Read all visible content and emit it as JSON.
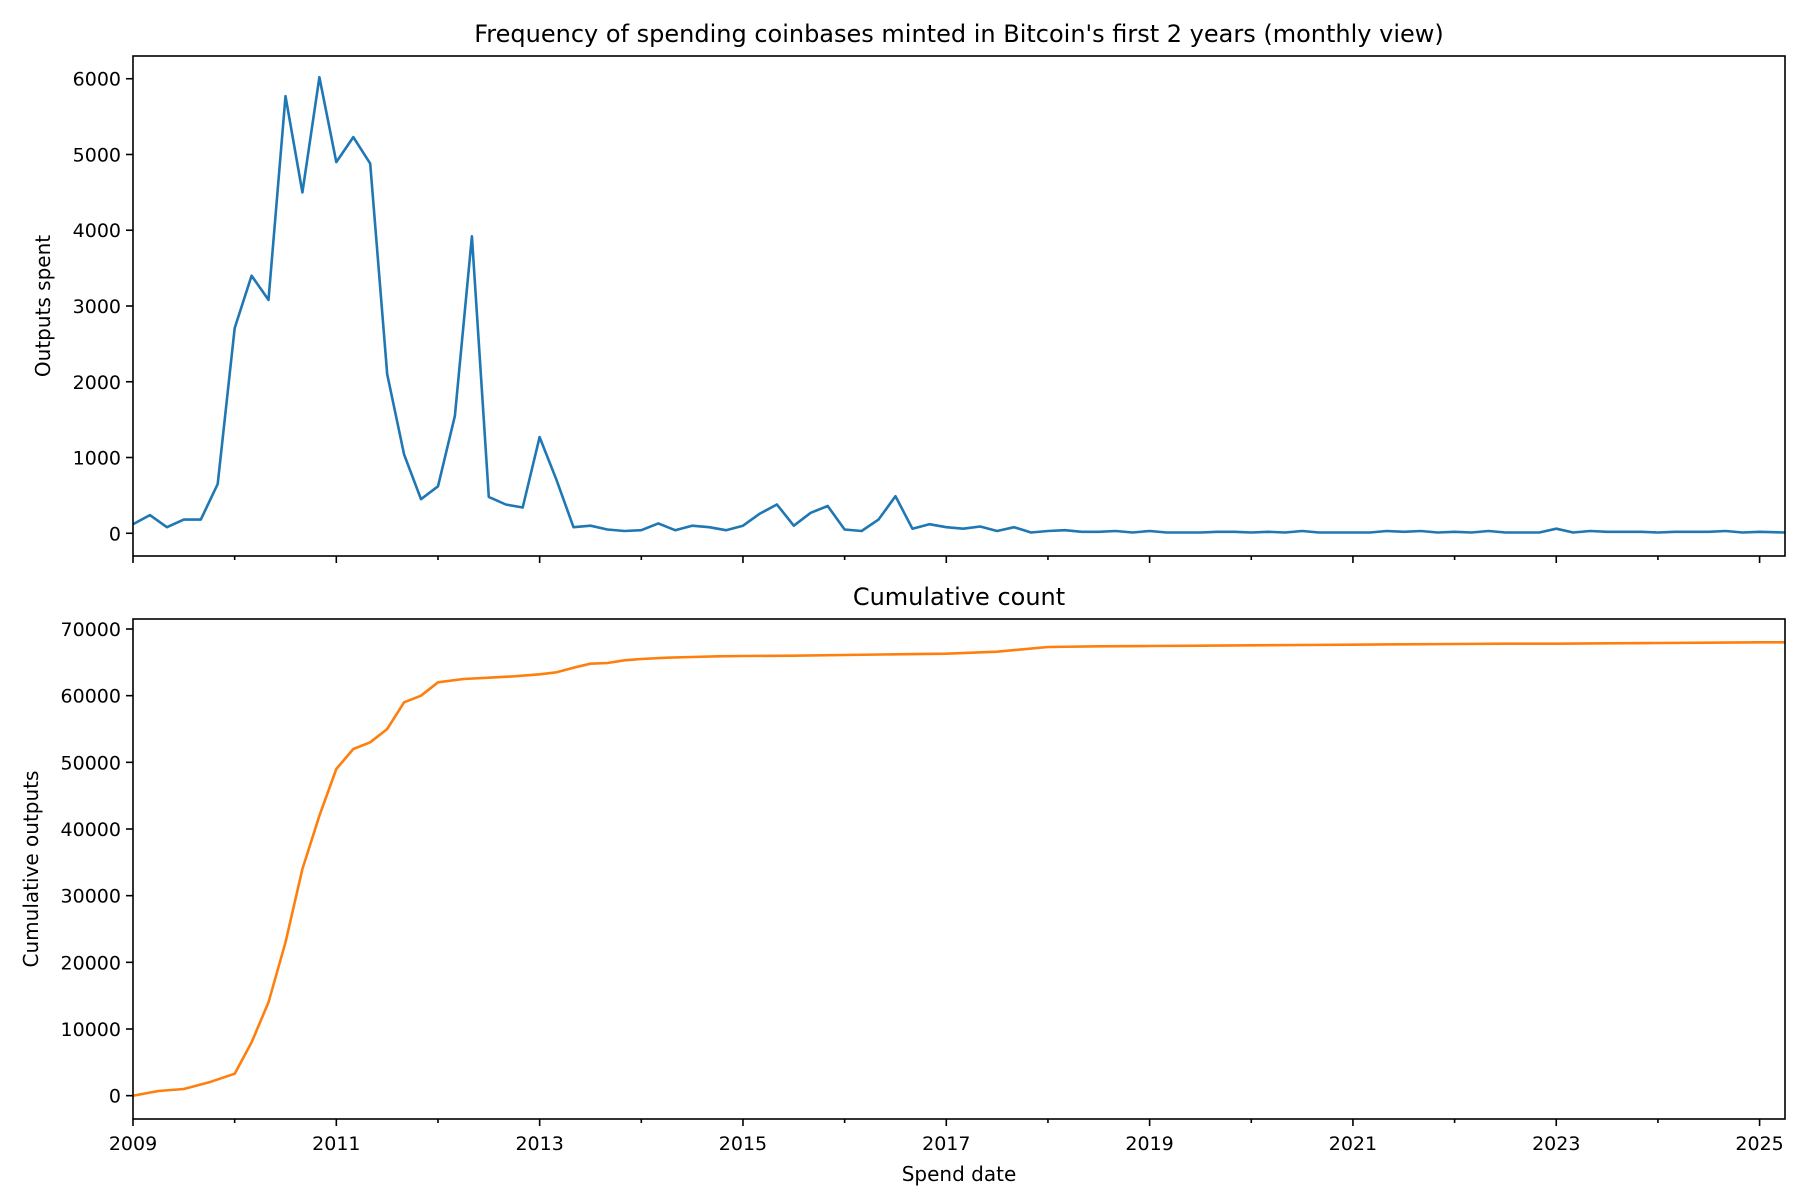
{
  "chart_data": [
    {
      "type": "line",
      "title": "Frequency of spending coinbases minted in Bitcoin's first 2 years (monthly view)",
      "xlabel": "",
      "ylabel": "Outputs spent",
      "xlim": [
        "2009-01",
        "2025-04"
      ],
      "ylim": [
        -300,
        6300
      ],
      "yticks": [
        0,
        1000,
        2000,
        3000,
        4000,
        5000,
        6000
      ],
      "ytick_labels": [
        "0",
        "1000",
        "2000",
        "3000",
        "4000",
        "5000",
        "6000"
      ],
      "xticks_major": [
        "2009-01",
        "2011-01",
        "2013-01",
        "2015-01",
        "2017-01",
        "2019-01",
        "2021-01",
        "2023-01",
        "2025-01"
      ],
      "xticks_minor": [
        "2010-01",
        "2012-01",
        "2014-01",
        "2016-01",
        "2018-01",
        "2020-01",
        "2022-01",
        "2024-01"
      ],
      "xtick_labels_shown": false,
      "grid": false,
      "color": "#1f77b4",
      "x": [
        "2009-01",
        "2009-03",
        "2009-05",
        "2009-07",
        "2009-09",
        "2009-11",
        "2010-01",
        "2010-03",
        "2010-05",
        "2010-07",
        "2010-09",
        "2010-11",
        "2011-01",
        "2011-03",
        "2011-05",
        "2011-07",
        "2011-09",
        "2011-11",
        "2012-01",
        "2012-03",
        "2012-05",
        "2012-07",
        "2012-09",
        "2012-11",
        "2013-01",
        "2013-03",
        "2013-05",
        "2013-07",
        "2013-09",
        "2013-11",
        "2014-01",
        "2014-03",
        "2014-05",
        "2014-07",
        "2014-09",
        "2014-11",
        "2015-01",
        "2015-03",
        "2015-05",
        "2015-07",
        "2015-09",
        "2015-11",
        "2016-01",
        "2016-03",
        "2016-05",
        "2016-07",
        "2016-09",
        "2016-11",
        "2017-01",
        "2017-03",
        "2017-05",
        "2017-07",
        "2017-09",
        "2017-11",
        "2018-01",
        "2018-03",
        "2018-05",
        "2018-07",
        "2018-09",
        "2018-11",
        "2019-01",
        "2019-03",
        "2019-05",
        "2019-07",
        "2019-09",
        "2019-11",
        "2020-01",
        "2020-03",
        "2020-05",
        "2020-07",
        "2020-09",
        "2020-11",
        "2021-01",
        "2021-03",
        "2021-05",
        "2021-07",
        "2021-09",
        "2021-11",
        "2022-01",
        "2022-03",
        "2022-05",
        "2022-07",
        "2022-09",
        "2022-11",
        "2023-01",
        "2023-03",
        "2023-05",
        "2023-07",
        "2023-09",
        "2023-11",
        "2024-01",
        "2024-03",
        "2024-05",
        "2024-07",
        "2024-09",
        "2024-11",
        "2025-01",
        "2025-04"
      ],
      "y": [
        120,
        240,
        80,
        180,
        180,
        650,
        2710,
        3400,
        3080,
        5770,
        4500,
        6020,
        4900,
        5230,
        4880,
        2100,
        1040,
        450,
        620,
        1550,
        3920,
        480,
        380,
        340,
        1270,
        700,
        80,
        100,
        50,
        30,
        40,
        130,
        40,
        100,
        80,
        40,
        100,
        260,
        380,
        100,
        270,
        360,
        50,
        30,
        180,
        490,
        60,
        120,
        80,
        60,
        90,
        30,
        80,
        10,
        30,
        40,
        20,
        20,
        30,
        10,
        30,
        10,
        10,
        10,
        20,
        20,
        10,
        20,
        10,
        30,
        10,
        10,
        10,
        10,
        30,
        20,
        30,
        10,
        20,
        10,
        30,
        10,
        10,
        10,
        60,
        10,
        30,
        20,
        20,
        20,
        10,
        20,
        20,
        20,
        30,
        10,
        20,
        10
      ]
    },
    {
      "type": "line",
      "title": "Cumulative count",
      "xlabel": "Spend date",
      "ylabel": "Cumulative outputs",
      "xlim": [
        "2009-01",
        "2025-04"
      ],
      "ylim": [
        -3500,
        71500
      ],
      "yticks": [
        0,
        10000,
        20000,
        30000,
        40000,
        50000,
        60000,
        70000
      ],
      "ytick_labels": [
        "0",
        "10000",
        "20000",
        "30000",
        "40000",
        "50000",
        "60000",
        "70000"
      ],
      "xticks_major": [
        "2009-01",
        "2011-01",
        "2013-01",
        "2015-01",
        "2017-01",
        "2019-01",
        "2021-01",
        "2023-01",
        "2025-01"
      ],
      "xtick_labels": [
        "2009",
        "2011",
        "2013",
        "2015",
        "2017",
        "2019",
        "2021",
        "2023",
        "2025"
      ],
      "xticks_minor": [
        "2010-01",
        "2012-01",
        "2014-01",
        "2016-01",
        "2018-01",
        "2020-01",
        "2022-01",
        "2024-01"
      ],
      "grid": false,
      "color": "#ff7f0e",
      "x": [
        "2009-01",
        "2009-04",
        "2009-07",
        "2009-10",
        "2010-01",
        "2010-03",
        "2010-05",
        "2010-07",
        "2010-09",
        "2010-11",
        "2011-01",
        "2011-03",
        "2011-05",
        "2011-07",
        "2011-09",
        "2011-11",
        "2012-01",
        "2012-04",
        "2012-07",
        "2012-10",
        "2013-01",
        "2013-03",
        "2013-05",
        "2013-07",
        "2013-09",
        "2013-11",
        "2014-01",
        "2014-04",
        "2014-07",
        "2014-10",
        "2015-01",
        "2015-07",
        "2016-01",
        "2016-07",
        "2017-01",
        "2017-07",
        "2018-01",
        "2018-07",
        "2019-01",
        "2019-07",
        "2020-01",
        "2020-07",
        "2021-01",
        "2021-07",
        "2022-01",
        "2022-07",
        "2023-01",
        "2023-07",
        "2024-01",
        "2024-07",
        "2025-01",
        "2025-04"
      ],
      "y": [
        0,
        700,
        1000,
        2000,
        3300,
        8000,
        14000,
        23000,
        34000,
        42000,
        49000,
        52000,
        53000,
        55000,
        59000,
        60000,
        62000,
        62500,
        62700,
        62900,
        63200,
        63500,
        64200,
        64800,
        64900,
        65300,
        65500,
        65700,
        65800,
        65900,
        65950,
        66000,
        66100,
        66200,
        66300,
        66600,
        67300,
        67400,
        67450,
        67500,
        67550,
        67600,
        67650,
        67700,
        67750,
        67800,
        67800,
        67850,
        67900,
        67950,
        68000,
        68000
      ]
    }
  ]
}
